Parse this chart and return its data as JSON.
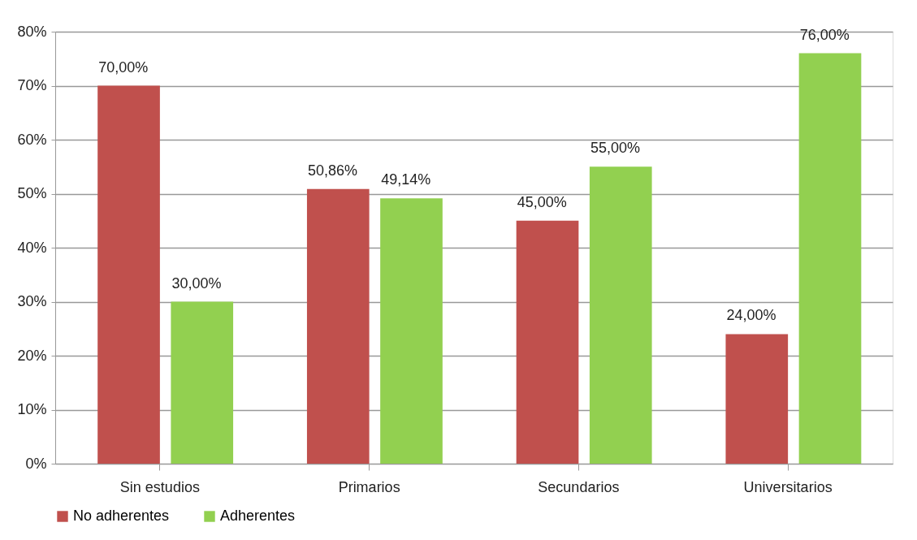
{
  "chart_data": {
    "type": "bar",
    "categories": [
      "Sin estudios",
      "Primarios",
      "Secundarios",
      "Universitarios"
    ],
    "series": [
      {
        "name": "No adherentes",
        "color": "#c0504d",
        "values": [
          70,
          50.86,
          45,
          24
        ],
        "value_labels": [
          "70,00%",
          "50,86%",
          "45,00%",
          "24,00%"
        ]
      },
      {
        "name": "Adherentes",
        "color": "#92d050",
        "values": [
          30,
          49.14,
          55,
          76
        ],
        "value_labels": [
          "30,00%",
          "49,14%",
          "55,00%",
          "76,00%"
        ]
      }
    ],
    "ylim": [
      0,
      80
    ],
    "yticks": [
      {
        "value": 0,
        "label": "0%"
      },
      {
        "value": 10,
        "label": "10%"
      },
      {
        "value": 20,
        "label": "20%"
      },
      {
        "value": 30,
        "label": "30%"
      },
      {
        "value": 40,
        "label": "40%"
      },
      {
        "value": 50,
        "label": "50%"
      },
      {
        "value": 60,
        "label": "60%"
      },
      {
        "value": 70,
        "label": "70%"
      },
      {
        "value": 80,
        "label": "80%"
      }
    ],
    "grid": "y",
    "legend": "bottom"
  }
}
